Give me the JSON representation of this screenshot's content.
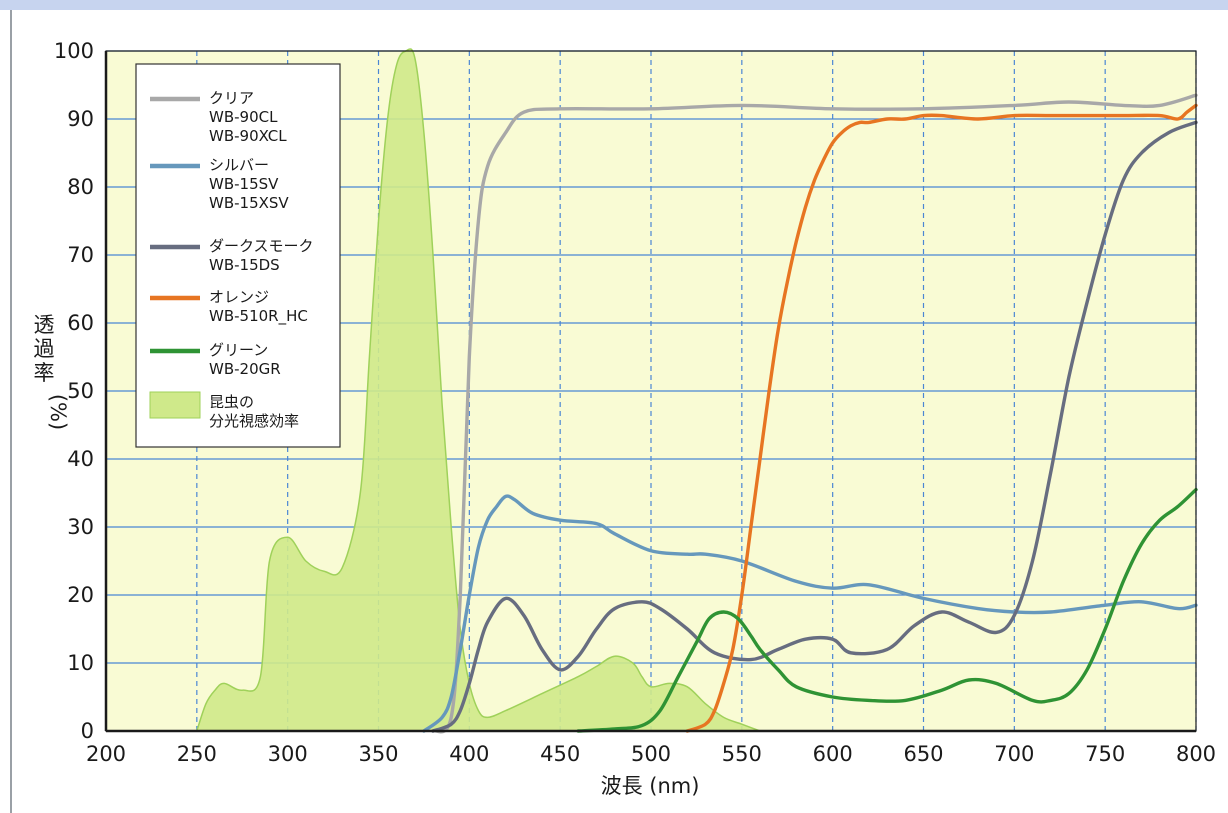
{
  "colors": {
    "plot_bg": "#f9fbd4",
    "top_band": "#c7d4ef",
    "grid_h": "#4a86d4",
    "grid_v": "#4a86d4",
    "insect_fill": "#cfe98a",
    "insect_stroke": "#9fd15a"
  },
  "chart_data": {
    "type": "line",
    "xlabel": "波長 (nm)",
    "ylabel": "透過率 (%)",
    "ylabel_parts": [
      "透",
      "過",
      "率",
      "(%)"
    ],
    "xlim": [
      200,
      800
    ],
    "ylim": [
      0,
      100
    ],
    "xticks": [
      200,
      250,
      300,
      350,
      400,
      450,
      500,
      550,
      600,
      650,
      700,
      750,
      800
    ],
    "yticks": [
      0,
      10,
      20,
      30,
      40,
      50,
      60,
      70,
      80,
      90,
      100
    ],
    "grid": {
      "horizontal": "solid",
      "vertical": "dashed"
    },
    "legend_position": "top-left",
    "series": [
      {
        "name": "クリア",
        "labels": [
          "クリア",
          "WB-90CL",
          "WB-90XCL"
        ],
        "color": "#a8a8a8",
        "kind": "line",
        "x": [
          380,
          390,
          395,
          400,
          405,
          410,
          420,
          430,
          450,
          500,
          550,
          600,
          650,
          700,
          730,
          760,
          780,
          800
        ],
        "y": [
          0,
          2,
          20,
          55,
          75,
          83,
          88,
          91,
          91.5,
          91.5,
          92,
          91.5,
          91.5,
          92,
          92.5,
          92,
          92,
          93.5
        ]
      },
      {
        "name": "シルバー",
        "labels": [
          "シルバー",
          "WB-15SV",
          "WB-15XSV"
        ],
        "color": "#6698bc",
        "kind": "line",
        "x": [
          375,
          385,
          390,
          395,
          400,
          405,
          410,
          415,
          420,
          425,
          435,
          450,
          470,
          480,
          500,
          520,
          530,
          550,
          580,
          600,
          620,
          650,
          680,
          700,
          720,
          750,
          770,
          790,
          800
        ],
        "y": [
          0,
          2,
          5,
          12,
          20,
          27,
          31,
          33,
          34.5,
          34,
          32,
          31,
          30.5,
          29,
          26.5,
          26,
          26,
          25,
          22,
          21,
          21.5,
          19.5,
          18,
          17.5,
          17.5,
          18.5,
          19,
          18,
          18.5
        ]
      },
      {
        "name": "ダークスモーク",
        "labels": [
          "ダークスモーク",
          "WB-15DS"
        ],
        "color": "#676d80",
        "kind": "line",
        "x": [
          380,
          390,
          395,
          400,
          405,
          410,
          420,
          430,
          440,
          450,
          460,
          470,
          480,
          495,
          505,
          520,
          535,
          555,
          570,
          585,
          600,
          610,
          630,
          645,
          660,
          675,
          690,
          700,
          710,
          720,
          730,
          740,
          750,
          760,
          770,
          785,
          800
        ],
        "y": [
          0,
          1,
          3,
          7,
          12,
          16,
          19.5,
          17,
          12,
          9,
          11,
          15,
          18,
          19,
          18,
          15,
          11.5,
          10.5,
          12,
          13.5,
          13.5,
          11.5,
          12,
          15.5,
          17.5,
          16,
          14.5,
          17,
          25,
          38,
          52,
          63,
          73,
          81,
          85,
          88,
          89.5
        ]
      },
      {
        "name": "オレンジ",
        "labels": [
          "オレンジ",
          "WB-510R_HC"
        ],
        "color": "#e77522",
        "kind": "line",
        "x": [
          520,
          530,
          535,
          540,
          545,
          550,
          555,
          560,
          565,
          570,
          575,
          580,
          585,
          590,
          595,
          600,
          605,
          610,
          615,
          620,
          630,
          640,
          650,
          660,
          680,
          700,
          720,
          740,
          760,
          780,
          790,
          795,
          800
        ],
        "y": [
          0,
          1,
          3,
          7,
          12,
          20,
          30,
          40,
          50,
          59,
          66,
          72,
          77,
          81,
          84,
          86.5,
          88,
          89,
          89.5,
          89.5,
          90,
          90,
          90.5,
          90.5,
          90,
          90.5,
          90.5,
          90.5,
          90.5,
          90.5,
          90,
          91,
          92
        ]
      },
      {
        "name": "グリーン",
        "labels": [
          "グリーン",
          "WB-20GR"
        ],
        "color": "#2f9334",
        "kind": "line",
        "x": [
          460,
          480,
          495,
          505,
          515,
          525,
          532,
          540,
          548,
          555,
          560,
          570,
          580,
          600,
          620,
          640,
          660,
          675,
          690,
          710,
          720,
          730,
          740,
          750,
          760,
          770,
          780,
          790,
          800
        ],
        "y": [
          0,
          0.3,
          0.8,
          3,
          8,
          13,
          16.5,
          17.5,
          16.5,
          14,
          12,
          9,
          6.5,
          5,
          4.5,
          4.5,
          6,
          7.5,
          7,
          4.5,
          4.5,
          5.5,
          9,
          15,
          22,
          27.5,
          31,
          33,
          35.5
        ]
      },
      {
        "name": "昆虫の分光視感効率",
        "labels": [
          "昆虫の",
          "分光視感効率"
        ],
        "color": "#cfe98a",
        "kind": "area",
        "x": [
          250,
          255,
          260,
          265,
          275,
          285,
          290,
          300,
          310,
          320,
          330,
          340,
          345,
          350,
          355,
          360,
          365,
          370,
          375,
          380,
          385,
          390,
          395,
          400,
          405,
          410,
          420,
          440,
          460,
          470,
          480,
          490,
          495,
          500,
          510,
          520,
          530,
          540,
          550,
          560
        ],
        "y": [
          0,
          4,
          6,
          7,
          6,
          8,
          25,
          28.5,
          25,
          23.5,
          24,
          35,
          55,
          75,
          90,
          98,
          100,
          99,
          88,
          70,
          48,
          30,
          15,
          7,
          3,
          2,
          3,
          5.5,
          8,
          9.5,
          11,
          10,
          8,
          6.5,
          7,
          6.5,
          4,
          2,
          1,
          0
        ]
      }
    ]
  }
}
